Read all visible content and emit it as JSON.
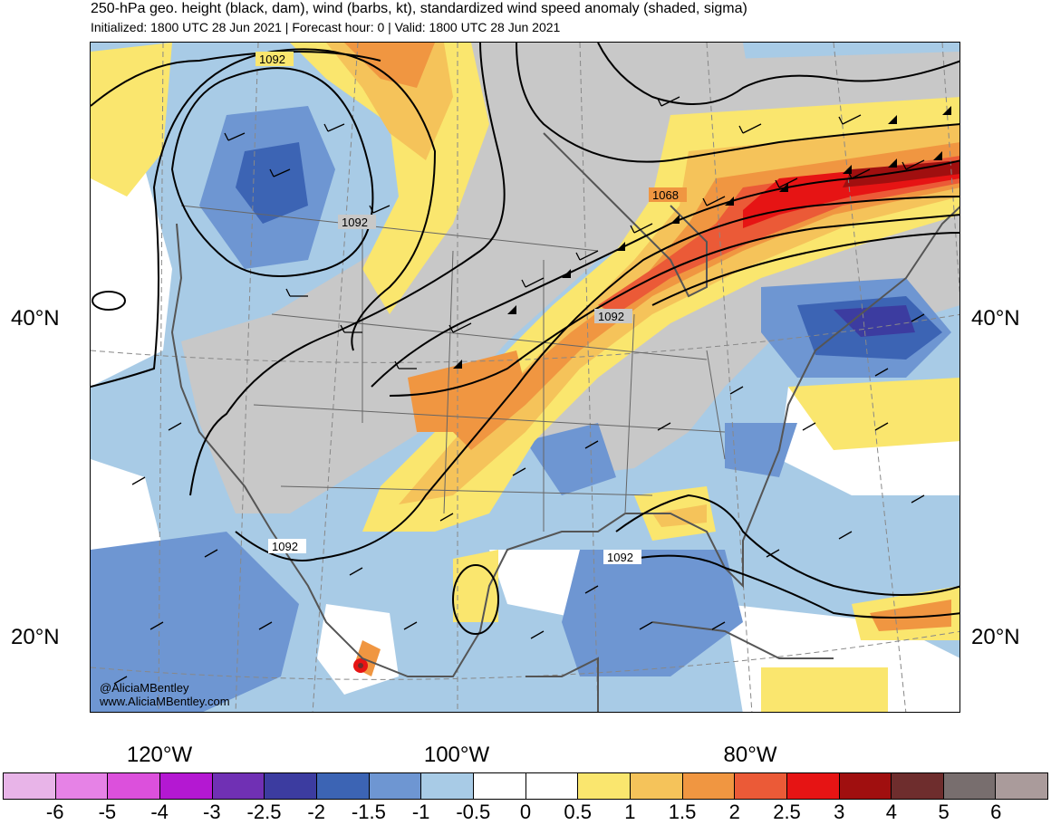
{
  "title": "250-hPa geo. height (black, dam), wind (barbs, kt), standardized wind speed anomaly (shaded, sigma)",
  "subtitle": "Initialized: 1800 UTC 28 Jun 2021 | Forecast hour: 0 | Valid: 1800 UTC 28 Jun 2021",
  "lat_labels": {
    "n40": "40°N",
    "n20": "20°N"
  },
  "lon_labels": {
    "w120": "120°W",
    "w100": "100°W",
    "w80": "80°W"
  },
  "contour_labels": {
    "nw_high": "1092",
    "rockies": "1092",
    "jet": "1068",
    "lakes": "1092",
    "mexico": "1092",
    "gulf": "1092"
  },
  "credits": {
    "handle": "@AliciaMBentley",
    "site": "www.AliciaMBentley.com"
  },
  "colorbar": {
    "colors": [
      "#e8b4e8",
      "#e682e6",
      "#dc50dc",
      "#b418d2",
      "#7030b4",
      "#3c3ca0",
      "#3c64b4",
      "#6e96d2",
      "#a8cbe6",
      "#ffffff",
      "#ffffff",
      "#fae66e",
      "#f5c35a",
      "#f09641",
      "#eb5a37",
      "#e61414",
      "#a00f0f",
      "#6e2d2d",
      "#786e6e",
      "#aa9b9b"
    ],
    "labels": [
      "-6",
      "-5",
      "-4",
      "-3",
      "-2.5",
      "-2",
      "-1.5",
      "-1",
      "-0.5",
      "0",
      "0.5",
      "1",
      "1.5",
      "2",
      "2.5",
      "3",
      "4",
      "5",
      "6"
    ]
  }
}
